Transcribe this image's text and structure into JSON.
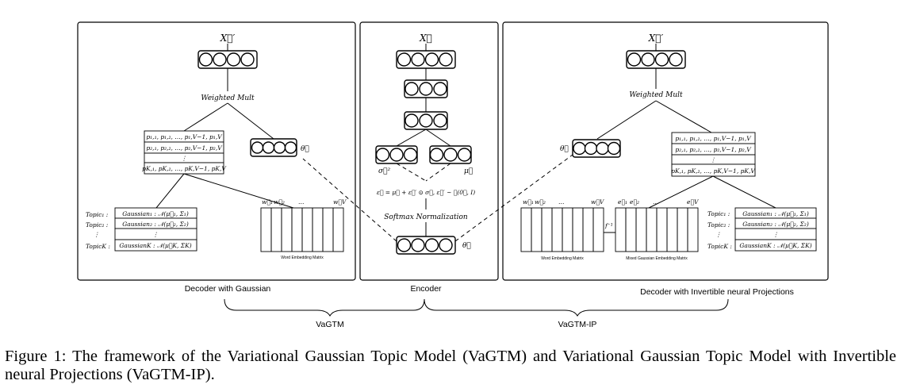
{
  "panels": {
    "left_title": "Decoder with Gaussian",
    "middle_title": "Encoder",
    "right_title": "Decoder with Invertible neural Projections"
  },
  "braces": {
    "left": "VaGTM",
    "right": "VaGTM-IP"
  },
  "math": {
    "x_out": "X⃗′",
    "x_in": "X⃗",
    "weighted_mult": "Weighted Mult",
    "theta": "θ⃗",
    "sigma2": "σ⃗²",
    "mu": "μ⃗",
    "reparam": "ε⃗ = μ⃗ + ε⃗′ ⊙ σ⃗, ε⃗′ ~ 𝒩(0⃗, I)",
    "softmax": "Softmax Normalization",
    "f_inv": "f⁻¹",
    "vdots": "⋮",
    "ellipsis": "…"
  },
  "prob_matrix_rows": [
    "p₁,₁, p₁,₂, …, p₁,V−1, p₁,V",
    "p₂,₁, p₂,₂, …, p₂,V−1, p₂,V",
    "⋮",
    "pK,₁, pK,₂, …, pK,V−1, pK,V"
  ],
  "topics": {
    "labels": [
      "Topic₁ :",
      "Topic₂ :",
      "⋮",
      "TopicK :"
    ],
    "gaussians": [
      "Gaussian₁ : 𝒩(μ⃗₁, Σ₁)",
      "Gaussian₂ : 𝒩(μ⃗₂, Σ₂)",
      "⋮",
      "GaussianK : 𝒩(μ⃗K, ΣK)"
    ]
  },
  "word_vectors": {
    "first": "w⃗₁",
    "second": "w⃗₂",
    "last": "w⃗V"
  },
  "mixed_vectors": {
    "first": "e⃗₁",
    "second": "e⃗₂",
    "last": "e⃗V"
  },
  "matrix_labels": {
    "word_embedding": "Word Embedding Matrix",
    "mixed_embedding": "Mixed Gaussian Embedding Matrix"
  },
  "caption": "Figure 1: The framework of the Variational Gaussian Topic Model (VaGTM) and Variational Gaussian Topic Model with Invertible neural Projections (VaGTM-IP)."
}
